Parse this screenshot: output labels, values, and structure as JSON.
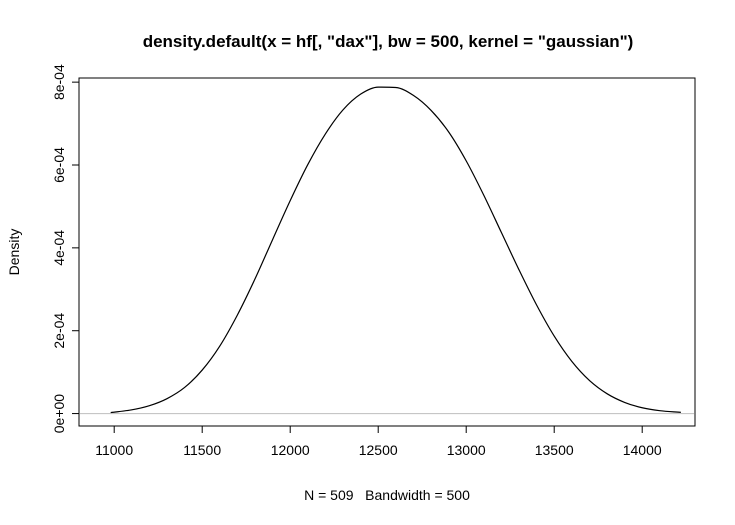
{
  "chart_data": {
    "type": "line",
    "title": "density.default(x = hf[, \"dax\"], bw = 500, kernel = \"gaussian\")",
    "xlabel": "N = 509   Bandwidth = 500",
    "ylabel": "Density",
    "xlim": [
      10800,
      14300
    ],
    "ylim": [
      -3e-05,
      0.00081
    ],
    "x_ticks": [
      11000,
      11500,
      12000,
      12500,
      13000,
      13500,
      14000
    ],
    "x_tick_labels": [
      "11000",
      "11500",
      "12000",
      "12500",
      "13000",
      "13500",
      "14000"
    ],
    "y_ticks": [
      0,
      0.0002,
      0.0004,
      0.0006,
      0.0008
    ],
    "y_tick_labels": [
      "0e+00",
      "2e-04",
      "4e-04",
      "6e-04",
      "8e-04"
    ],
    "baseline": 0,
    "grid": false,
    "legend": "none",
    "series": [
      {
        "x": [
          10980,
          11100,
          11200,
          11300,
          11400,
          11500,
          11600,
          11700,
          11800,
          11900,
          12000,
          12100,
          12200,
          12300,
          12400,
          12500,
          12600,
          12700,
          12800,
          12900,
          13000,
          13100,
          13200,
          13300,
          13400,
          13500,
          13600,
          13700,
          13800,
          13900,
          14000,
          14100,
          14220
        ],
        "y": [
          2.5e-06,
          9e-06,
          1.9e-05,
          3.6e-05,
          6.3e-05,
          0.000105,
          0.000163,
          0.000238,
          0.000325,
          0.00042,
          0.000514,
          0.000601,
          0.000675,
          0.000733,
          0.000771,
          0.000788,
          0.000787,
          0.000768,
          0.000732,
          0.00068,
          0.00061,
          0.000527,
          0.000437,
          0.000347,
          0.000262,
          0.000187,
          0.000126,
          8e-05,
          4.8e-05,
          2.7e-05,
          1.4e-05,
          7e-06,
          3e-06
        ]
      }
    ],
    "colors": {
      "line": "#000000",
      "baseline": "#bebebe",
      "axis": "#000000"
    }
  }
}
